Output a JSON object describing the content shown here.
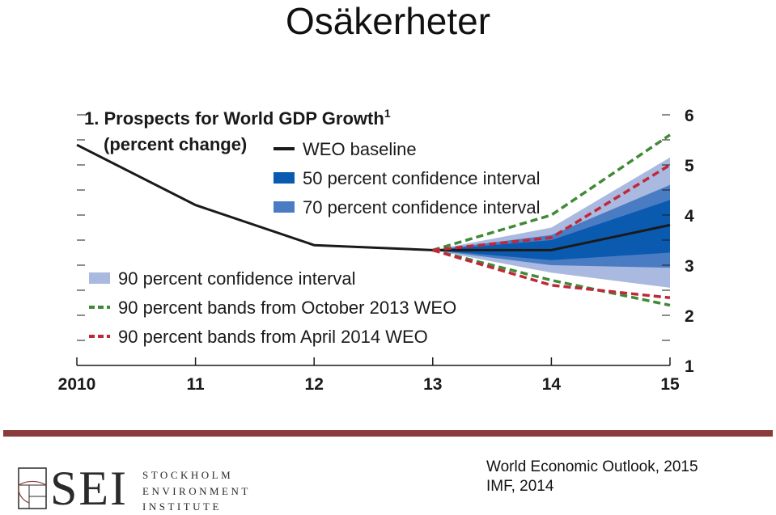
{
  "slide": {
    "title": "Osäkerheter"
  },
  "chart_data": {
    "type": "line",
    "title": "1. Prospects for World GDP Growth",
    "title_superscript": "1",
    "subtitle": "(percent change)",
    "x_tick_labels": [
      "2010",
      "11",
      "12",
      "13",
      "14",
      "15"
    ],
    "x": [
      2010,
      2011,
      2012,
      2013,
      2014,
      2015
    ],
    "xlim": [
      2010,
      2015
    ],
    "ylim": [
      1,
      6
    ],
    "y_ticks": [
      1,
      2,
      3,
      4,
      5,
      6
    ],
    "y_tick_labels": [
      "1",
      "2",
      "3",
      "4",
      "5",
      "6"
    ],
    "y_axis_side": "right",
    "series": [
      {
        "name": "WEO baseline",
        "style": "solid",
        "color": "#1a1a1a",
        "x": [
          2010,
          2011,
          2012,
          2013,
          2014,
          2015
        ],
        "values": [
          5.4,
          4.2,
          3.4,
          3.3,
          3.3,
          3.8
        ]
      },
      {
        "name": "90 percent bands from October 2013 WEO",
        "style": "dashed",
        "color": "#3f8a36",
        "x": [
          2013,
          2014,
          2015
        ],
        "upper": [
          3.3,
          4.0,
          5.6
        ],
        "lower": [
          3.3,
          2.7,
          2.2
        ]
      },
      {
        "name": "90 percent bands from April 2014 WEO",
        "style": "dashed",
        "color": "#c0283a",
        "x": [
          2013,
          2014,
          2015
        ],
        "upper": [
          3.3,
          3.55,
          5.0
        ],
        "lower": [
          3.3,
          2.6,
          2.35
        ]
      }
    ],
    "bands": [
      {
        "name": "90 percent confidence interval",
        "color": "#aab9e0",
        "x": [
          2013,
          2014,
          2015
        ],
        "upper": [
          3.3,
          3.75,
          5.15
        ],
        "lower": [
          3.3,
          2.85,
          2.55
        ]
      },
      {
        "name": "70 percent confidence interval",
        "color": "#4a7cc4",
        "x": [
          2013,
          2014,
          2015
        ],
        "upper": [
          3.3,
          3.6,
          4.6
        ],
        "lower": [
          3.3,
          3.0,
          2.95
        ]
      },
      {
        "name": "50 percent confidence interval",
        "color": "#0a5ab0",
        "x": [
          2013,
          2014,
          2015
        ],
        "upper": [
          3.3,
          3.5,
          4.3
        ],
        "lower": [
          3.3,
          3.1,
          3.25
        ]
      }
    ],
    "legend": [
      {
        "label": "WEO baseline",
        "kind": "line",
        "color": "#1a1a1a"
      },
      {
        "label": "50 percent confidence interval",
        "kind": "box",
        "color": "#0a5ab0"
      },
      {
        "label": "70 percent confidence interval",
        "kind": "box",
        "color": "#4a7cc4"
      },
      {
        "label": "90 percent confidence interval",
        "kind": "box",
        "color": "#aab9e0"
      },
      {
        "label": "90 percent bands from October 2013 WEO",
        "kind": "dash",
        "color": "#3f8a36"
      },
      {
        "label": "90 percent bands from April 2014 WEO",
        "kind": "dash",
        "color": "#c0283a"
      }
    ]
  },
  "logo": {
    "letters": "SEI",
    "name_lines": [
      "STOCKHOLM",
      "ENVIRONMENT",
      "INSTITUTE"
    ]
  },
  "source": {
    "line1": "World Economic Outlook, 2015",
    "line2": "IMF, 2014"
  }
}
